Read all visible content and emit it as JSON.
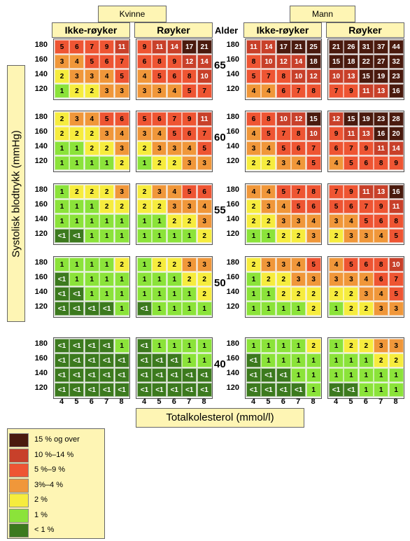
{
  "headers": {
    "kvinne": "Kvinne",
    "mann": "Mann",
    "alder": "Alder",
    "groups": [
      "Ikke-røyker",
      "Røyker",
      "Ikke-røyker",
      "Røyker"
    ]
  },
  "y_axis_label": "Systolisk blodtrykk (mmHg)",
  "x_axis_label": "Totalkolesterol (mmol/l)",
  "bp_levels": [
    "180",
    "160",
    "140",
    "120"
  ],
  "cholesterol_levels": [
    "4",
    "5",
    "6",
    "7",
    "8"
  ],
  "ages": [
    "65",
    "60",
    "55",
    "50",
    "40"
  ],
  "colors": {
    "c15": "#4a1a0e",
    "c10": "#c8402a",
    "c5": "#ee5533",
    "c3": "#f0973a",
    "c2": "#f6ec3e",
    "c1": "#8be33a",
    "c0": "#3c7a1e"
  },
  "legend": [
    {
      "label": "15 % og over",
      "color": "#4a1a0e"
    },
    {
      "label": "10 %–14 %",
      "color": "#c8402a"
    },
    {
      "label": "5 %–9 %",
      "color": "#ee5533"
    },
    {
      "label": "3%–4 %",
      "color": "#f0973a"
    },
    {
      "label": "2 %",
      "color": "#f6ec3e"
    },
    {
      "label": "1 %",
      "color": "#8be33a"
    },
    {
      "label": "< 1 %",
      "color": "#3c7a1e"
    }
  ],
  "panels": {
    "65": {
      "kvinne_ikke": [
        [
          "5",
          "6",
          "7",
          "9",
          "11"
        ],
        [
          "3",
          "4",
          "5",
          "6",
          "7"
        ],
        [
          "2",
          "3",
          "3",
          "4",
          "5"
        ],
        [
          "1",
          "2",
          "2",
          "3",
          "3"
        ]
      ],
      "kvinne_royk": [
        [
          "9",
          "11",
          "14",
          "17",
          "21"
        ],
        [
          "6",
          "8",
          "9",
          "12",
          "14"
        ],
        [
          "4",
          "5",
          "6",
          "8",
          "10"
        ],
        [
          "3",
          "3",
          "4",
          "5",
          "7"
        ]
      ],
      "mann_ikke": [
        [
          "11",
          "14",
          "17",
          "21",
          "25"
        ],
        [
          "8",
          "10",
          "12",
          "14",
          "18"
        ],
        [
          "5",
          "7",
          "8",
          "10",
          "12"
        ],
        [
          "4",
          "4",
          "6",
          "7",
          "8"
        ]
      ],
      "mann_royk": [
        [
          "21",
          "26",
          "31",
          "37",
          "44"
        ],
        [
          "15",
          "18",
          "22",
          "27",
          "32"
        ],
        [
          "10",
          "13",
          "15",
          "19",
          "23"
        ],
        [
          "7",
          "9",
          "11",
          "13",
          "16"
        ]
      ]
    },
    "60": {
      "kvinne_ikke": [
        [
          "2",
          "3",
          "4",
          "5",
          "6"
        ],
        [
          "2",
          "2",
          "2",
          "3",
          "4"
        ],
        [
          "1",
          "1",
          "2",
          "2",
          "3"
        ],
        [
          "1",
          "1",
          "1",
          "1",
          "2"
        ]
      ],
      "kvinne_royk": [
        [
          "5",
          "6",
          "7",
          "9",
          "11"
        ],
        [
          "3",
          "4",
          "5",
          "6",
          "7"
        ],
        [
          "2",
          "3",
          "3",
          "4",
          "5"
        ],
        [
          "1",
          "2",
          "2",
          "3",
          "3"
        ]
      ],
      "mann_ikke": [
        [
          "6",
          "8",
          "10",
          "12",
          "15"
        ],
        [
          "4",
          "5",
          "7",
          "8",
          "10"
        ],
        [
          "3",
          "4",
          "5",
          "6",
          "7"
        ],
        [
          "2",
          "2",
          "3",
          "4",
          "5"
        ]
      ],
      "mann_royk": [
        [
          "12",
          "15",
          "19",
          "23",
          "28"
        ],
        [
          "9",
          "11",
          "13",
          "16",
          "20"
        ],
        [
          "6",
          "7",
          "9",
          "11",
          "14"
        ],
        [
          "4",
          "5",
          "6",
          "8",
          "9"
        ]
      ]
    },
    "55": {
      "kvinne_ikke": [
        [
          "1",
          "2",
          "2",
          "2",
          "3"
        ],
        [
          "1",
          "1",
          "1",
          "2",
          "2"
        ],
        [
          "1",
          "1",
          "1",
          "1",
          "1"
        ],
        [
          "<1",
          "<1",
          "1",
          "1",
          "1"
        ]
      ],
      "kvinne_royk": [
        [
          "2",
          "3",
          "4",
          "5",
          "6"
        ],
        [
          "2",
          "2",
          "3",
          "3",
          "4"
        ],
        [
          "1",
          "1",
          "2",
          "2",
          "3"
        ],
        [
          "1",
          "1",
          "1",
          "1",
          "2"
        ]
      ],
      "mann_ikke": [
        [
          "4",
          "4",
          "5",
          "7",
          "8"
        ],
        [
          "2",
          "3",
          "4",
          "5",
          "6"
        ],
        [
          "2",
          "2",
          "3",
          "3",
          "4"
        ],
        [
          "1",
          "1",
          "2",
          "2",
          "3"
        ]
      ],
      "mann_royk": [
        [
          "7",
          "9",
          "11",
          "13",
          "16"
        ],
        [
          "5",
          "6",
          "7",
          "9",
          "11"
        ],
        [
          "3",
          "4",
          "5",
          "6",
          "8"
        ],
        [
          "2",
          "3",
          "3",
          "4",
          "5"
        ]
      ]
    },
    "50": {
      "kvinne_ikke": [
        [
          "1",
          "1",
          "1",
          "1",
          "2"
        ],
        [
          "<1",
          "1",
          "1",
          "1",
          "1"
        ],
        [
          "<1",
          "<1",
          "1",
          "1",
          "1"
        ],
        [
          "<1",
          "<1",
          "<1",
          "<1",
          "1"
        ]
      ],
      "kvinne_royk": [
        [
          "1",
          "2",
          "2",
          "3",
          "3"
        ],
        [
          "1",
          "1",
          "1",
          "2",
          "2"
        ],
        [
          "1",
          "1",
          "1",
          "1",
          "2"
        ],
        [
          "<1",
          "1",
          "1",
          "1",
          "1"
        ]
      ],
      "mann_ikke": [
        [
          "2",
          "3",
          "3",
          "4",
          "5"
        ],
        [
          "1",
          "2",
          "2",
          "3",
          "3"
        ],
        [
          "1",
          "1",
          "2",
          "2",
          "2"
        ],
        [
          "1",
          "1",
          "1",
          "1",
          "2"
        ]
      ],
      "mann_royk": [
        [
          "4",
          "5",
          "6",
          "8",
          "10"
        ],
        [
          "3",
          "3",
          "4",
          "6",
          "7"
        ],
        [
          "2",
          "2",
          "3",
          "4",
          "5"
        ],
        [
          "1",
          "2",
          "2",
          "3",
          "3"
        ]
      ]
    },
    "40": {
      "kvinne_ikke": [
        [
          "<1",
          "<1",
          "<1",
          "<1",
          "1"
        ],
        [
          "<1",
          "<1",
          "<1",
          "<1",
          "<1"
        ],
        [
          "<1",
          "<1",
          "<1",
          "<1",
          "<1"
        ],
        [
          "<1",
          "<1",
          "<1",
          "<1",
          "<1"
        ]
      ],
      "kvinne_royk": [
        [
          "<1",
          "1",
          "1",
          "1",
          "1"
        ],
        [
          "<1",
          "<1",
          "<1",
          "1",
          "1"
        ],
        [
          "<1",
          "<1",
          "<1",
          "<1",
          "<1"
        ],
        [
          "<1",
          "<1",
          "<1",
          "<1",
          "<1"
        ]
      ],
      "mann_ikke": [
        [
          "1",
          "1",
          "1",
          "1",
          "2"
        ],
        [
          "<1",
          "1",
          "1",
          "1",
          "1"
        ],
        [
          "<1",
          "<1",
          "<1",
          "1",
          "1"
        ],
        [
          "<1",
          "<1",
          "<1",
          "<1",
          "1"
        ]
      ],
      "mann_royk": [
        [
          "1",
          "2",
          "2",
          "3",
          "3"
        ],
        [
          "1",
          "1",
          "1",
          "2",
          "2"
        ],
        [
          "1",
          "1",
          "1",
          "1",
          "1"
        ],
        [
          "<1",
          "<1",
          "1",
          "1",
          "1"
        ]
      ]
    }
  }
}
